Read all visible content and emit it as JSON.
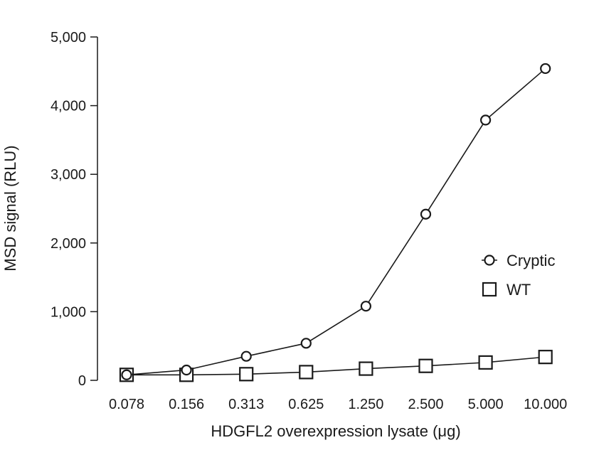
{
  "chart_data": {
    "type": "line",
    "categories": [
      "0.078",
      "0.156",
      "0.313",
      "0.625",
      "1.250",
      "2.500",
      "5.000",
      "10.000"
    ],
    "series": [
      {
        "name": "Cryptic",
        "marker": "circle",
        "values": [
          80,
          150,
          350,
          540,
          1080,
          2420,
          3790,
          4540
        ]
      },
      {
        "name": "WT",
        "marker": "square",
        "values": [
          80,
          80,
          90,
          120,
          170,
          210,
          260,
          340
        ]
      }
    ],
    "xlabel": "HDGFL2 overexpression lysate (μg)",
    "ylabel": "MSD signal (RLU)",
    "ylim": [
      0,
      5000
    ],
    "yticks": [
      0,
      1000,
      2000,
      3000,
      4000,
      5000
    ],
    "ytick_labels": [
      "0",
      "1,000",
      "2,000",
      "3,000",
      "4,000",
      "5,000"
    ],
    "grid": false,
    "legend_position": "right",
    "colors": {
      "line": "#1a1a1a",
      "background": "#ffffff"
    }
  }
}
